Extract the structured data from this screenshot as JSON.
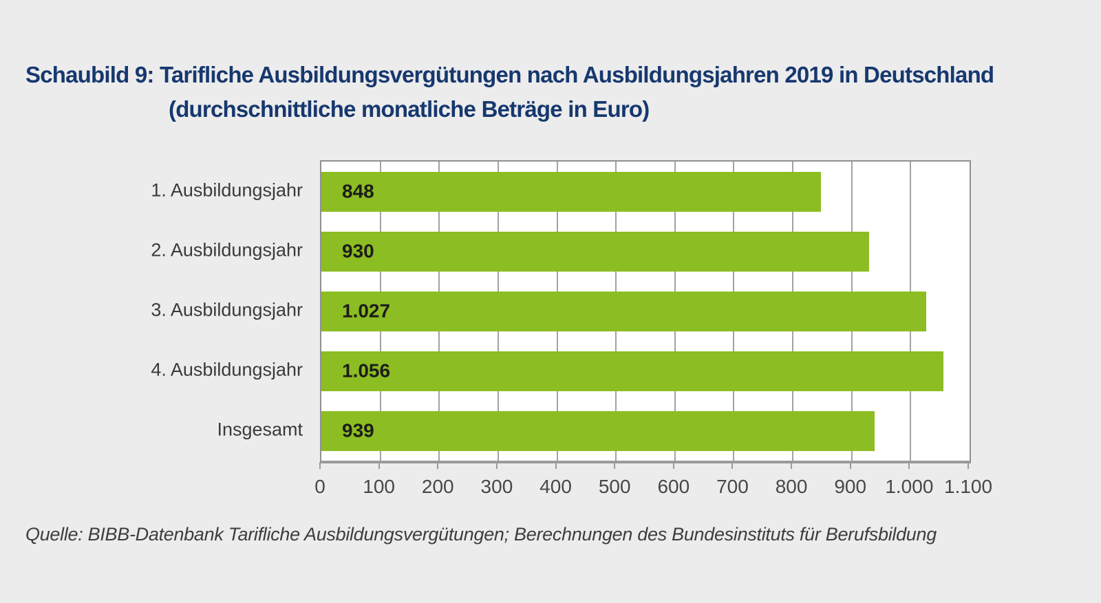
{
  "title": {
    "line1": "Schaubild 9: Tarifliche Ausbildungsvergütungen nach Ausbildungsjahren 2019 in Deutschland",
    "line2": "(durchschnittliche monatliche Beträge in Euro)"
  },
  "source": "Quelle: BIBB-Datenbank Tarifliche Ausbildungsvergütungen; Berechnungen des Bundesinstituts für Berufsbildung",
  "colors": {
    "background": "#ececec",
    "plot_background": "#ffffff",
    "bar": "#8cbd22",
    "title": "#17386f",
    "gridline": "#a2a2a2",
    "axis": "#9a9a9a",
    "category_label": "#3a3a3a",
    "value_label": "#1c1c1a",
    "tick_label": "#474747",
    "source_text": "#3d3d3d"
  },
  "chart_data": {
    "type": "bar",
    "orientation": "horizontal",
    "title": "Schaubild 9: Tarifliche Ausbildungsvergütungen nach Ausbildungsjahren 2019 in Deutschland (durchschnittliche monatliche Beträge in Euro)",
    "categories": [
      "1. Ausbildungsjahr",
      "2. Ausbildungsjahr",
      "3. Ausbildungsjahr",
      "4. Ausbildungsjahr",
      "Insgesamt"
    ],
    "values": [
      848,
      930,
      1027,
      1056,
      939
    ],
    "value_labels": [
      "848",
      "930",
      "1.027",
      "1.056",
      "939"
    ],
    "xlabel": "",
    "ylabel": "",
    "xlim": [
      0,
      1100
    ],
    "x_ticks": [
      0,
      100,
      200,
      300,
      400,
      500,
      600,
      700,
      800,
      900,
      1000,
      1100
    ],
    "x_tick_labels": [
      "0",
      "100",
      "200",
      "300",
      "400",
      "500",
      "600",
      "700",
      "800",
      "900",
      "1.000",
      "1.100"
    ],
    "grid": true,
    "legend": false,
    "value_labels_position": "inside-start"
  }
}
